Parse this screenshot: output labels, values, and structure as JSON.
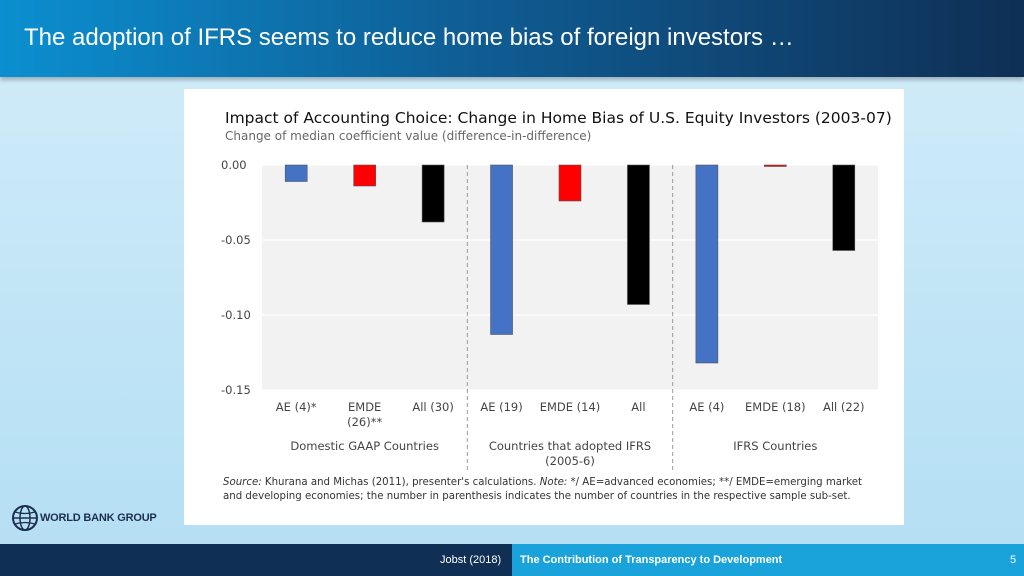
{
  "slide": {
    "title": "The adoption of IFRS seems to reduce home bias of foreign investors …"
  },
  "footer": {
    "author": "Jobst (2018)",
    "talk_title": "The Contribution of Transparency to Development",
    "page_number": "5"
  },
  "logo": {
    "text": "WORLD BANK GROUP",
    "icon": "globe-icon"
  },
  "source": {
    "label": "Source:",
    "text1": " Khurana and Michas (2011), presenter's calculations. ",
    "note_label": "Note:",
    "text2": " */ AE=advanced economies; **/ EMDE=emerging market and developing economies; the number in parenthesis indicates the number of countries in the respective sample sub-set."
  },
  "colors": {
    "ae": "#4472c4",
    "emde": "#ff0000",
    "all": "#000000",
    "plot_bg": "#f2f2f2"
  },
  "chart_data": {
    "type": "bar",
    "title": "Impact of Accounting Choice: Change in Home Bias of U.S. Equity Investors (2003-07)",
    "subtitle": "Change of median coefficient value (difference-in-difference)",
    "ylim": [
      -0.15,
      0.0
    ],
    "yticks": [
      "0.00",
      "-0.05",
      "-0.10",
      "-0.15"
    ],
    "yticks_values": [
      0.0,
      -0.05,
      -0.1,
      -0.15
    ],
    "groups": [
      {
        "label_lines": [
          "Domestic GAAP Countries"
        ],
        "categories": [
          {
            "label_lines": [
              "AE (4)*"
            ],
            "value": -0.011,
            "color": "#4472c4"
          },
          {
            "label_lines": [
              "EMDE",
              "(26)**"
            ],
            "value": -0.014,
            "color": "#ff0000"
          },
          {
            "label_lines": [
              "All (30)"
            ],
            "value": -0.038,
            "color": "#000000"
          }
        ]
      },
      {
        "label_lines": [
          "Countries that adopted IFRS",
          "(2005-6)"
        ],
        "categories": [
          {
            "label_lines": [
              "AE (19)"
            ],
            "value": -0.113,
            "color": "#4472c4"
          },
          {
            "label_lines": [
              "EMDE (14)"
            ],
            "value": -0.024,
            "color": "#ff0000"
          },
          {
            "label_lines": [
              "All"
            ],
            "value": -0.093,
            "color": "#000000"
          }
        ]
      },
      {
        "label_lines": [
          "IFRS Countries"
        ],
        "categories": [
          {
            "label_lines": [
              "AE (4)"
            ],
            "value": -0.132,
            "color": "#4472c4"
          },
          {
            "label_lines": [
              "EMDE (18)"
            ],
            "value": -0.001,
            "color": "#ff0000"
          },
          {
            "label_lines": [
              "All (22)"
            ],
            "value": -0.057,
            "color": "#000000"
          }
        ]
      }
    ]
  }
}
